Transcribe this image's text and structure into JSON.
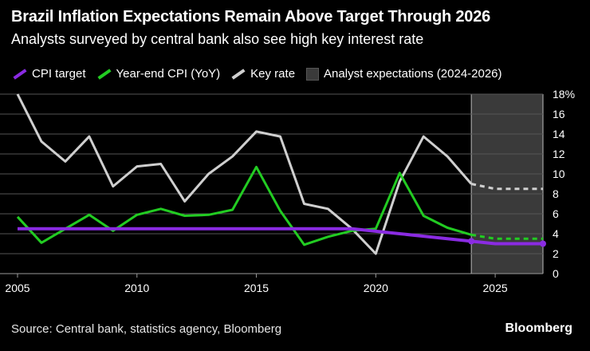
{
  "header": {
    "title": "Brazil Inflation Expectations Remain Above Target Through 2026",
    "subtitle": "Analysts surveyed by central bank also see high key interest rate"
  },
  "legend": {
    "cpi_target": "CPI target",
    "yearend_cpi": "Year-end CPI (YoY)",
    "key_rate": "Key rate",
    "expectations": "Analyst expectations (2024-2026)"
  },
  "footer": {
    "source": "Source: Central bank, statistics agency, Bloomberg",
    "brand": "Bloomberg"
  },
  "colors": {
    "cpi_target": "#8a2be2",
    "yearend_cpi": "#22cc22",
    "key_rate": "#cfcfcf",
    "expectations_band": "#3a3a3a"
  },
  "chart_data": {
    "type": "line",
    "xlim": [
      2005,
      2027
    ],
    "ylim": [
      0,
      18
    ],
    "x_ticks": [
      2005,
      2010,
      2015,
      2020,
      2025
    ],
    "x_tick_labels": [
      "2005",
      "2010",
      "2015",
      "2020",
      "2025"
    ],
    "y_ticks": [
      0,
      2,
      4,
      6,
      8,
      10,
      12,
      14,
      16,
      18
    ],
    "y_tick_labels": [
      "0",
      "2",
      "4",
      "6",
      "8",
      "10",
      "12",
      "14",
      "16",
      "18%"
    ],
    "grid": true,
    "shaded_range": {
      "label": "Analyst expectations (2024-2026)",
      "x": [
        2024,
        2027
      ]
    },
    "series": [
      {
        "name": "Key rate",
        "x": [
          2005,
          2006,
          2007,
          2008,
          2009,
          2010,
          2011,
          2012,
          2013,
          2014,
          2015,
          2016,
          2017,
          2018,
          2019,
          2020,
          2021,
          2022,
          2023,
          2024,
          2025,
          2026,
          2027
        ],
        "values": [
          18.0,
          13.25,
          11.25,
          13.75,
          8.75,
          10.75,
          11.0,
          7.25,
          10.0,
          11.75,
          14.25,
          13.75,
          7.0,
          6.5,
          4.5,
          2.0,
          9.25,
          13.75,
          11.75,
          9.0,
          8.5,
          8.5,
          8.5
        ],
        "projected_from": 2024
      },
      {
        "name": "Year-end CPI (YoY)",
        "x": [
          2005,
          2006,
          2007,
          2008,
          2009,
          2010,
          2011,
          2012,
          2013,
          2014,
          2015,
          2016,
          2017,
          2018,
          2019,
          2020,
          2021,
          2022,
          2023,
          2024,
          2025,
          2026,
          2027
        ],
        "values": [
          5.7,
          3.1,
          4.5,
          5.9,
          4.3,
          5.9,
          6.5,
          5.8,
          5.9,
          6.4,
          10.7,
          6.3,
          2.9,
          3.7,
          4.3,
          4.5,
          10.1,
          5.8,
          4.6,
          3.9,
          3.5,
          3.5,
          3.5
        ],
        "projected_from": 2024
      },
      {
        "name": "CPI target",
        "x": [
          2005,
          2006,
          2007,
          2008,
          2009,
          2010,
          2011,
          2012,
          2013,
          2014,
          2015,
          2016,
          2017,
          2018,
          2019,
          2020,
          2021,
          2022,
          2023,
          2024,
          2025,
          2026,
          2027
        ],
        "values": [
          4.5,
          4.5,
          4.5,
          4.5,
          4.5,
          4.5,
          4.5,
          4.5,
          4.5,
          4.5,
          4.5,
          4.5,
          4.5,
          4.5,
          4.5,
          4.25,
          4.0,
          3.75,
          3.5,
          3.25,
          3.0,
          3.0,
          3.0
        ],
        "markers_at": [
          2024,
          2027
        ]
      }
    ]
  }
}
